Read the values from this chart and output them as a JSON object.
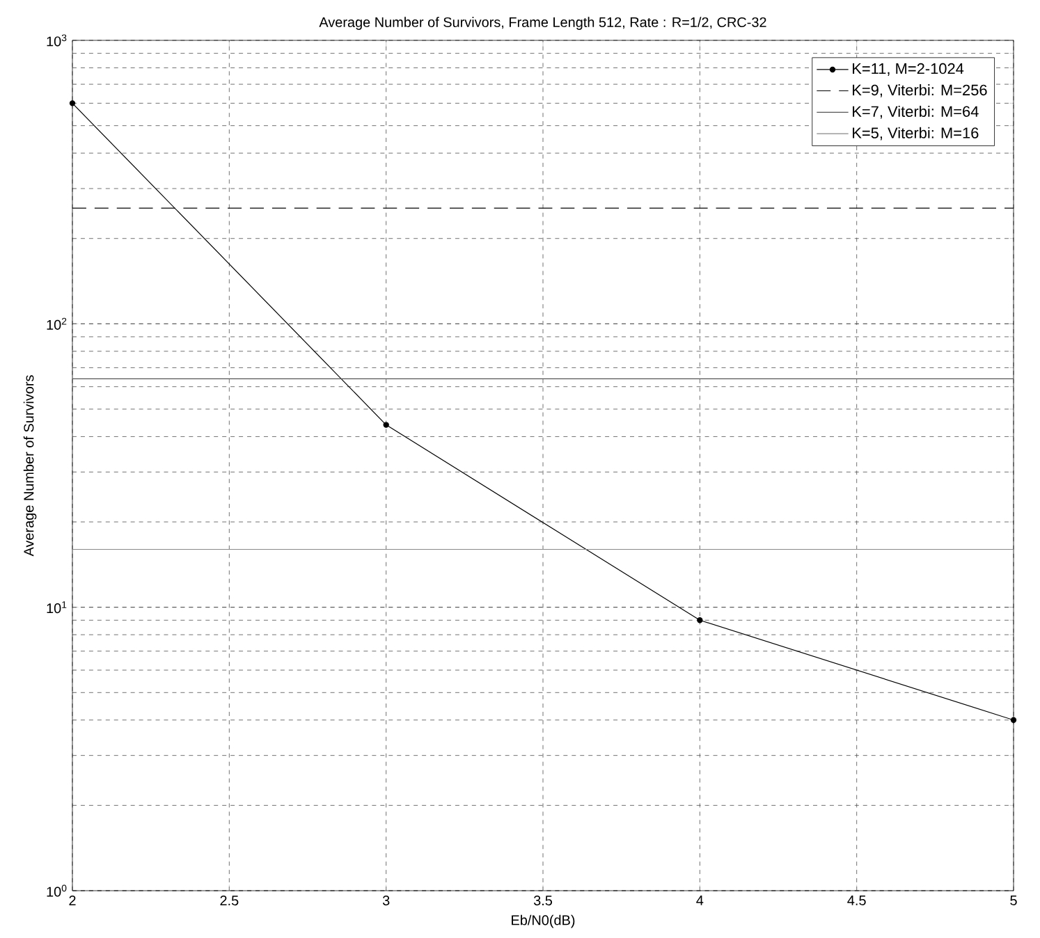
{
  "chart_data": {
    "type": "line",
    "title": "Average Number of Survivors, Frame Length 512, Rate : R=1/2, CRC-32",
    "xlabel": "Eb/N0(dB)",
    "ylabel": "Average Number of Survivors",
    "series": [
      {
        "name": "K=11, M=2-1024",
        "color": "#000000",
        "x": [
          2,
          3,
          4,
          5
        ],
        "values": [
          600,
          44,
          9,
          4
        ],
        "marker": "circle",
        "line_style": "solid"
      },
      {
        "name": "K=9, Viterbi: M=256",
        "color": "#000000",
        "x": [
          2,
          5
        ],
        "values": [
          256,
          256
        ],
        "marker": "none",
        "line_style": "dashed"
      },
      {
        "name": "K=7, Viterbi: M=64",
        "color": "#555555",
        "x": [
          2,
          5
        ],
        "values": [
          64,
          64
        ],
        "marker": "none",
        "line_style": "solid"
      },
      {
        "name": "K=5, Viterbi: M=16",
        "color": "#888888",
        "x": [
          2,
          5
        ],
        "values": [
          16,
          16
        ],
        "marker": "none",
        "line_style": "solid"
      }
    ],
    "log": "y",
    "grid": true,
    "legend": "top right",
    "xlim": [
      2,
      5
    ],
    "ylim": [
      1,
      1000
    ],
    "xticks": [
      2,
      2.5,
      3,
      3.5,
      4,
      4.5,
      5
    ],
    "yticks": [
      {
        "value": 1,
        "label": "10$^{0}$"
      },
      {
        "value": 10,
        "label": "10$^{1}$"
      },
      {
        "value": 100,
        "label": "10$^{2}$"
      },
      {
        "value": 1000,
        "label": "10$^{3}$"
      }
    ]
  }
}
